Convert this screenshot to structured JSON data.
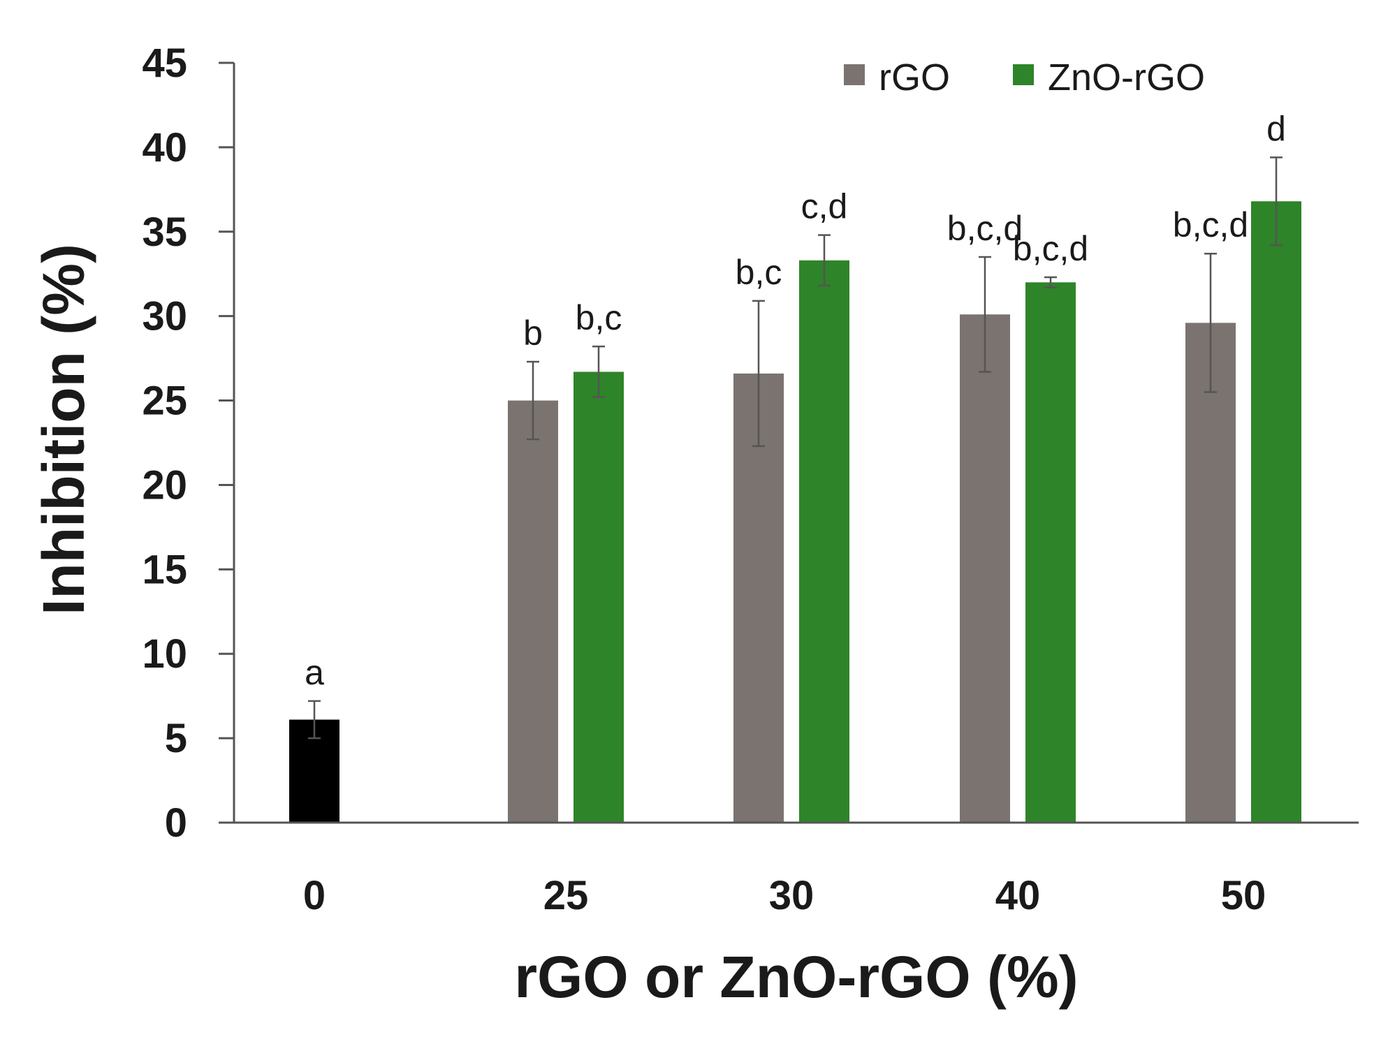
{
  "chart_data": {
    "type": "bar",
    "title": "",
    "xlabel": "rGO or ZnO-rGO (%)",
    "ylabel": "Inhibition (%)",
    "ylim": [
      0,
      45
    ],
    "yticks": [
      0,
      5,
      10,
      15,
      20,
      25,
      30,
      35,
      40,
      45
    ],
    "categories": [
      "0",
      "25",
      "30",
      "40",
      "50"
    ],
    "legend_position": "top-right",
    "control": {
      "category": "0",
      "value": 6.1,
      "error": 1.1,
      "label": "a",
      "color": "#000000"
    },
    "series": [
      {
        "name": "rGO",
        "color": "#7a7370",
        "values": [
          null,
          25.0,
          26.6,
          30.1,
          29.6
        ],
        "errors": [
          null,
          2.3,
          4.3,
          3.4,
          4.1
        ],
        "labels": [
          null,
          "b",
          "b,c",
          "b,c,d",
          "b,c,d"
        ]
      },
      {
        "name": "ZnO-rGO",
        "color": "#2e8428",
        "values": [
          null,
          26.7,
          33.3,
          32.0,
          36.8
        ],
        "errors": [
          null,
          1.5,
          1.5,
          0.3,
          2.6
        ],
        "labels": [
          null,
          "b,c",
          "c,d",
          "b,c,d",
          "d"
        ]
      }
    ]
  }
}
